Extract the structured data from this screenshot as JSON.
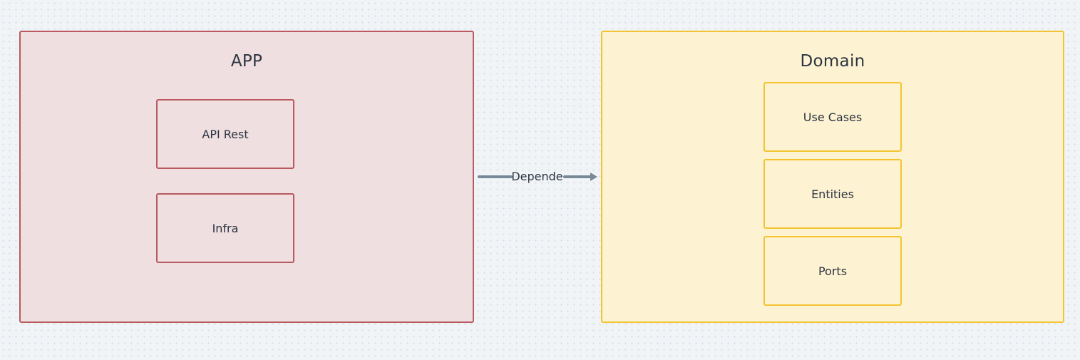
{
  "colors": {
    "app_fill": "#efdfe0",
    "app_border": "#b85a5f",
    "domain_fill": "#fdf2d2",
    "domain_border": "#f4c430",
    "edge": "#778899"
  },
  "groups": {
    "app": {
      "title": "APP",
      "nodes": [
        {
          "label": "API Rest"
        },
        {
          "label": "Infra"
        }
      ]
    },
    "domain": {
      "title": "Domain",
      "nodes": [
        {
          "label": "Use Cases"
        },
        {
          "label": "Entities"
        },
        {
          "label": "Ports"
        }
      ]
    }
  },
  "edges": [
    {
      "from": "APP",
      "to": "Domain",
      "label": "Depende"
    }
  ]
}
